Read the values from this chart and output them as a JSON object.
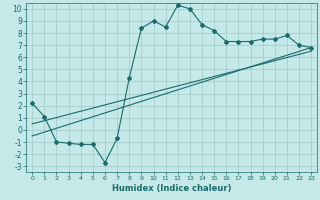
{
  "xlabel": "Humidex (Indice chaleur)",
  "ylabel": "",
  "background_color": "#c5e8e8",
  "grid_color": "#a0c8c8",
  "line_color": "#1a6b6b",
  "xlim": [
    -0.5,
    23.5
  ],
  "ylim": [
    -3.5,
    10.5
  ],
  "xticks": [
    0,
    1,
    2,
    3,
    4,
    5,
    6,
    7,
    8,
    9,
    10,
    11,
    12,
    13,
    14,
    15,
    16,
    17,
    18,
    19,
    20,
    21,
    22,
    23
  ],
  "yticks": [
    -3,
    -2,
    -1,
    0,
    1,
    2,
    3,
    4,
    5,
    6,
    7,
    8,
    9,
    10
  ],
  "main_x": [
    0,
    1,
    2,
    3,
    4,
    5,
    6,
    7,
    8,
    9,
    10,
    11,
    12,
    13,
    14,
    15,
    16,
    17,
    18,
    19,
    20,
    21,
    22,
    23
  ],
  "main_y": [
    2.2,
    1.1,
    -1.0,
    -1.1,
    -1.2,
    -1.2,
    -2.7,
    -0.7,
    4.3,
    8.4,
    9.0,
    8.5,
    10.3,
    10.0,
    8.7,
    8.2,
    7.3,
    7.3,
    7.3,
    7.5,
    7.5,
    7.8,
    7.0,
    6.8
  ],
  "line2_x": [
    0,
    23
  ],
  "line2_y": [
    -0.5,
    6.8
  ],
  "line3_x": [
    0,
    23
  ],
  "line3_y": [
    0.5,
    6.5
  ]
}
